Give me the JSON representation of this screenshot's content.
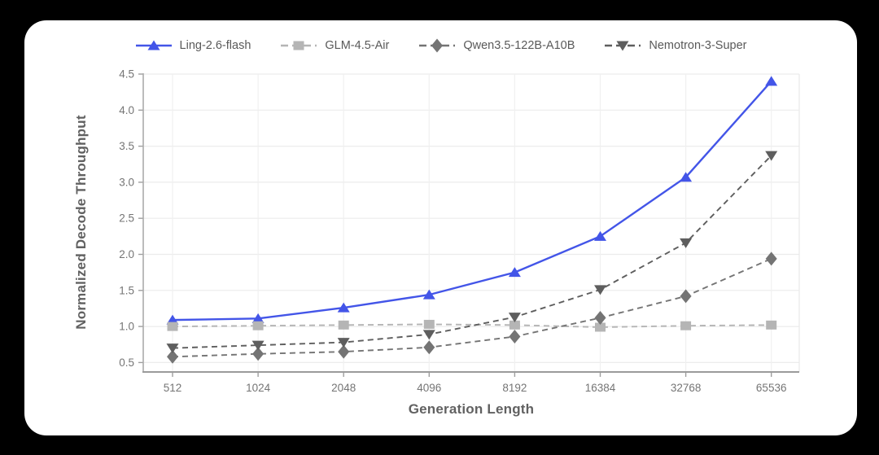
{
  "figure": {
    "background": "#000000",
    "card_background": "#ffffff"
  },
  "chart_data": {
    "type": "line",
    "title": "",
    "xlabel": "Generation Length",
    "ylabel": "Normalized Decode Throughput",
    "categories": [
      "512",
      "1024",
      "2048",
      "4096",
      "8192",
      "16384",
      "32768",
      "65536"
    ],
    "y_ticks": [
      0.5,
      1.0,
      1.5,
      2.0,
      2.5,
      3.0,
      3.5,
      4.0,
      4.5
    ],
    "y_ticklabels": [
      "0.5",
      "1.0",
      "1.5",
      "2.0",
      "2.5",
      "3.0",
      "3.5",
      "4.0",
      "4.5"
    ],
    "ylim": [
      0.37,
      4.5
    ],
    "grid": "on",
    "legend_position": "top-center",
    "series": [
      {
        "name": "Ling-2.6-flash",
        "color": "#4355e8",
        "line_style": "solid",
        "marker": "triangle-up",
        "values": [
          1.09,
          1.11,
          1.26,
          1.44,
          1.75,
          2.25,
          3.07,
          4.4
        ]
      },
      {
        "name": "GLM-4.5-Air",
        "color": "#b5b5b5",
        "line_style": "dashed",
        "marker": "square",
        "values": [
          1.0,
          1.01,
          1.02,
          1.03,
          1.02,
          0.99,
          1.01,
          1.02
        ]
      },
      {
        "name": "Qwen3.5-122B-A10B",
        "color": "#747474",
        "line_style": "dashed",
        "marker": "diamond",
        "values": [
          0.58,
          0.62,
          0.65,
          0.71,
          0.86,
          1.12,
          1.42,
          1.94
        ]
      },
      {
        "name": "Nemotron-3-Super",
        "color": "#5e5e5e",
        "line_style": "dashed",
        "marker": "triangle-down",
        "values": [
          0.7,
          0.74,
          0.78,
          0.89,
          1.13,
          1.51,
          2.16,
          3.37
        ]
      }
    ]
  }
}
